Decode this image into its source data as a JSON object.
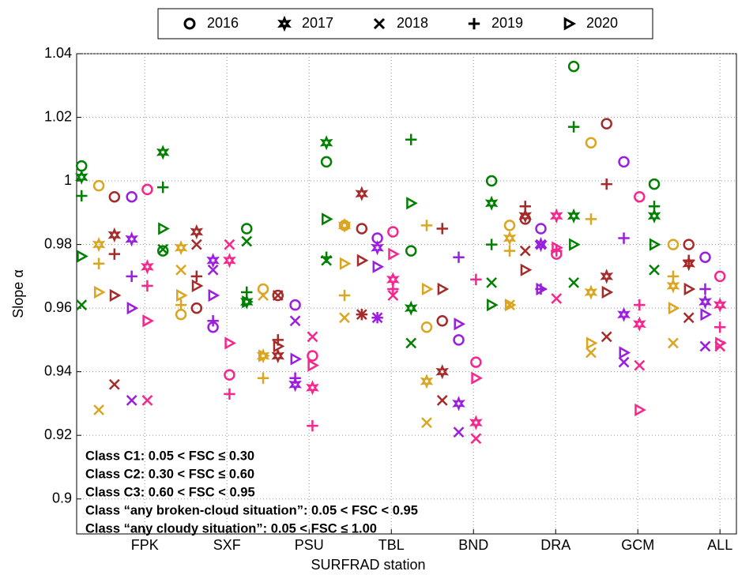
{
  "chart_data": {
    "type": "scatter",
    "x_label": "SURFRAD station",
    "y_label": "Slope α",
    "xlim": [
      0.17,
      8.2
    ],
    "ylim": [
      0.889,
      1.04
    ],
    "xticks": [
      {
        "value": 1,
        "label": "FPK"
      },
      {
        "value": 2,
        "label": "SXF"
      },
      {
        "value": 3,
        "label": "PSU"
      },
      {
        "value": 4,
        "label": "TBL"
      },
      {
        "value": 5,
        "label": "BND"
      },
      {
        "value": 6,
        "label": "DRA"
      },
      {
        "value": 7,
        "label": "GCM"
      },
      {
        "value": 8,
        "label": "ALL"
      }
    ],
    "yticks": [
      0.9,
      0.92,
      0.94,
      0.96,
      0.98,
      1,
      1.02,
      1.04
    ],
    "grid": true,
    "legend": "top",
    "years": [
      {
        "name": "2016",
        "marker": "circle"
      },
      {
        "name": "2017",
        "marker": "star"
      },
      {
        "name": "2018",
        "marker": "x"
      },
      {
        "name": "2019",
        "marker": "plus"
      },
      {
        "name": "2020",
        "marker": "triangle"
      }
    ],
    "series": [
      {
        "name": "Class C1: 0.05 < FSC ≤ 0.30",
        "color": "#f7268c",
        "x": [
          1.03,
          2.03,
          3.04,
          4.02,
          5.03,
          6.01,
          7.02,
          8.0
        ],
        "values": [
          [
            0.9973,
            0.939,
            0.945,
            0.984,
            0.943,
            0.977,
            0.995,
            0.97
          ],
          [
            0.973,
            0.975,
            0.935,
            0.969,
            0.924,
            0.989,
            0.955,
            0.961
          ],
          [
            0.931,
            0.98,
            0.951,
            0.964,
            0.919,
            0.963,
            0.942,
            0.948
          ],
          [
            0.967,
            0.933,
            0.923,
            0.966,
            0.969,
            0.978,
            0.961,
            0.954
          ],
          [
            0.956,
            0.949,
            0.942,
            0.977,
            0.938,
            0.979,
            0.928,
            0.949
          ]
        ]
      },
      {
        "name": "Class C2: 0.30 < FSC ≤ 0.60",
        "color": "#9a1ee0",
        "x": [
          0.84,
          1.83,
          2.83,
          3.83,
          4.82,
          5.82,
          6.83,
          7.82
        ],
        "values": [
          [
            0.995,
            0.954,
            0.961,
            0.982,
            0.95,
            0.985,
            1.006,
            0.976
          ],
          [
            0.9817,
            0.975,
            0.936,
            0.979,
            0.93,
            0.98,
            0.958,
            0.962
          ],
          [
            0.931,
            0.972,
            0.956,
            0.957,
            0.921,
            0.98,
            0.943,
            0.948
          ],
          [
            0.97,
            0.956,
            0.938,
            0.957,
            0.976,
            0.966,
            0.982,
            0.966
          ],
          [
            0.96,
            0.964,
            0.944,
            0.973,
            0.955,
            0.966,
            0.946,
            0.958
          ]
        ]
      },
      {
        "name": "Class C3: 0.60 < FSC < 0.95",
        "color": "#a52a2a",
        "x": [
          0.63,
          1.63,
          2.62,
          3.64,
          4.62,
          5.63,
          6.62,
          7.62
        ],
        "values": [
          [
            0.995,
            0.96,
            0.964,
            0.985,
            0.956,
            0.988,
            1.018,
            0.98
          ],
          [
            0.983,
            0.984,
            0.945,
            0.996,
            0.94,
            0.989,
            0.97,
            0.974
          ],
          [
            0.936,
            0.98,
            0.964,
            0.958,
            0.931,
            0.978,
            0.951,
            0.957
          ],
          [
            0.977,
            0.97,
            0.95,
            0.958,
            0.985,
            0.992,
            0.999,
            0.975
          ],
          [
            0.964,
            0.967,
            0.948,
            0.975,
            0.966,
            0.972,
            0.965,
            0.966
          ]
        ]
      },
      {
        "name": "Class “any broken-cloud situation”: 0.05 < FSC < 0.95",
        "color": "#daa520",
        "x": [
          0.44,
          1.44,
          2.44,
          3.43,
          4.43,
          5.44,
          6.43,
          7.43
        ],
        "values": [
          [
            0.9985,
            0.958,
            0.966,
            0.986,
            0.954,
            0.986,
            1.012,
            0.98
          ],
          [
            0.98,
            0.979,
            0.945,
            0.986,
            0.937,
            0.982,
            0.965,
            0.967
          ],
          [
            0.928,
            0.972,
            0.964,
            0.957,
            0.924,
            0.961,
            0.946,
            0.949
          ],
          [
            0.974,
            0.961,
            0.938,
            0.964,
            0.986,
            0.978,
            0.988,
            0.97
          ],
          [
            0.965,
            0.964,
            0.945,
            0.974,
            0.966,
            0.961,
            0.949,
            0.96
          ]
        ]
      },
      {
        "name": "Class “any cloudy situation”: 0.05 < FSC ≤ 1.00",
        "color": "#008000",
        "x": [
          0.23,
          1.22,
          2.24,
          3.21,
          4.24,
          5.22,
          6.22,
          7.2
        ],
        "values": [
          [
            1.0047,
            0.978,
            0.985,
            1.006,
            0.978,
            1.0,
            1.036,
            0.999
          ],
          [
            1.0012,
            1.009,
            0.962,
            1.012,
            0.96,
            0.993,
            0.989,
            0.989
          ],
          [
            0.961,
            0.9785,
            0.981,
            0.975,
            0.949,
            0.968,
            0.968,
            0.972
          ],
          [
            0.9953,
            0.998,
            0.965,
            0.976,
            1.013,
            0.98,
            1.017,
            0.992
          ],
          [
            0.9763,
            0.985,
            0.962,
            0.988,
            0.993,
            0.961,
            0.98,
            0.98
          ]
        ]
      }
    ]
  }
}
